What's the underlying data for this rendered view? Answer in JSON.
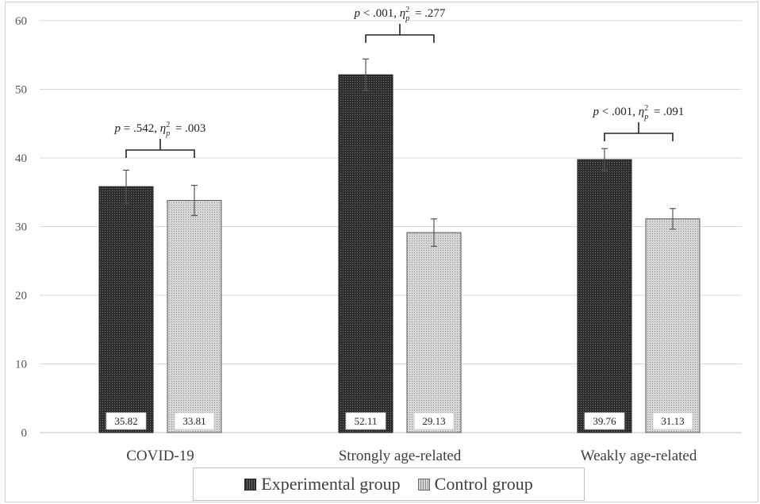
{
  "chart_data": {
    "type": "bar",
    "categories": [
      "COVID-19",
      "Strongly age-related",
      "Weakly age-related"
    ],
    "series": [
      {
        "name": "Experimental group",
        "values": [
          35.82,
          52.11,
          39.76
        ],
        "error": [
          2.4,
          2.3,
          1.6
        ],
        "color": "#3a3a3a"
      },
      {
        "name": "Control group",
        "values": [
          33.81,
          29.13,
          31.13
        ],
        "error": [
          2.2,
          2.0,
          1.5
        ],
        "color": "#cfcfcf"
      }
    ],
    "data_labels": [
      [
        "35.82",
        "52.11",
        "39.76"
      ],
      [
        "33.81",
        "29.13",
        "31.13"
      ]
    ],
    "ylim": [
      0,
      60
    ],
    "yticks": [
      0,
      10,
      20,
      30,
      40,
      50,
      60
    ],
    "grid": true,
    "legend_position": "bottom",
    "annotations": [
      {
        "category": "COVID-19",
        "p": "p = .542, ",
        "eta": "= .003"
      },
      {
        "category": "Strongly age-related",
        "p": "p < .001, ",
        "eta": "= .277"
      },
      {
        "category": "Weakly age-related",
        "p": "p < .001, ",
        "eta": "= .091"
      }
    ],
    "eta_symbol": "η",
    "eta_sup": "2",
    "eta_sub": "p",
    "title": "",
    "xlabel": "",
    "ylabel": ""
  }
}
